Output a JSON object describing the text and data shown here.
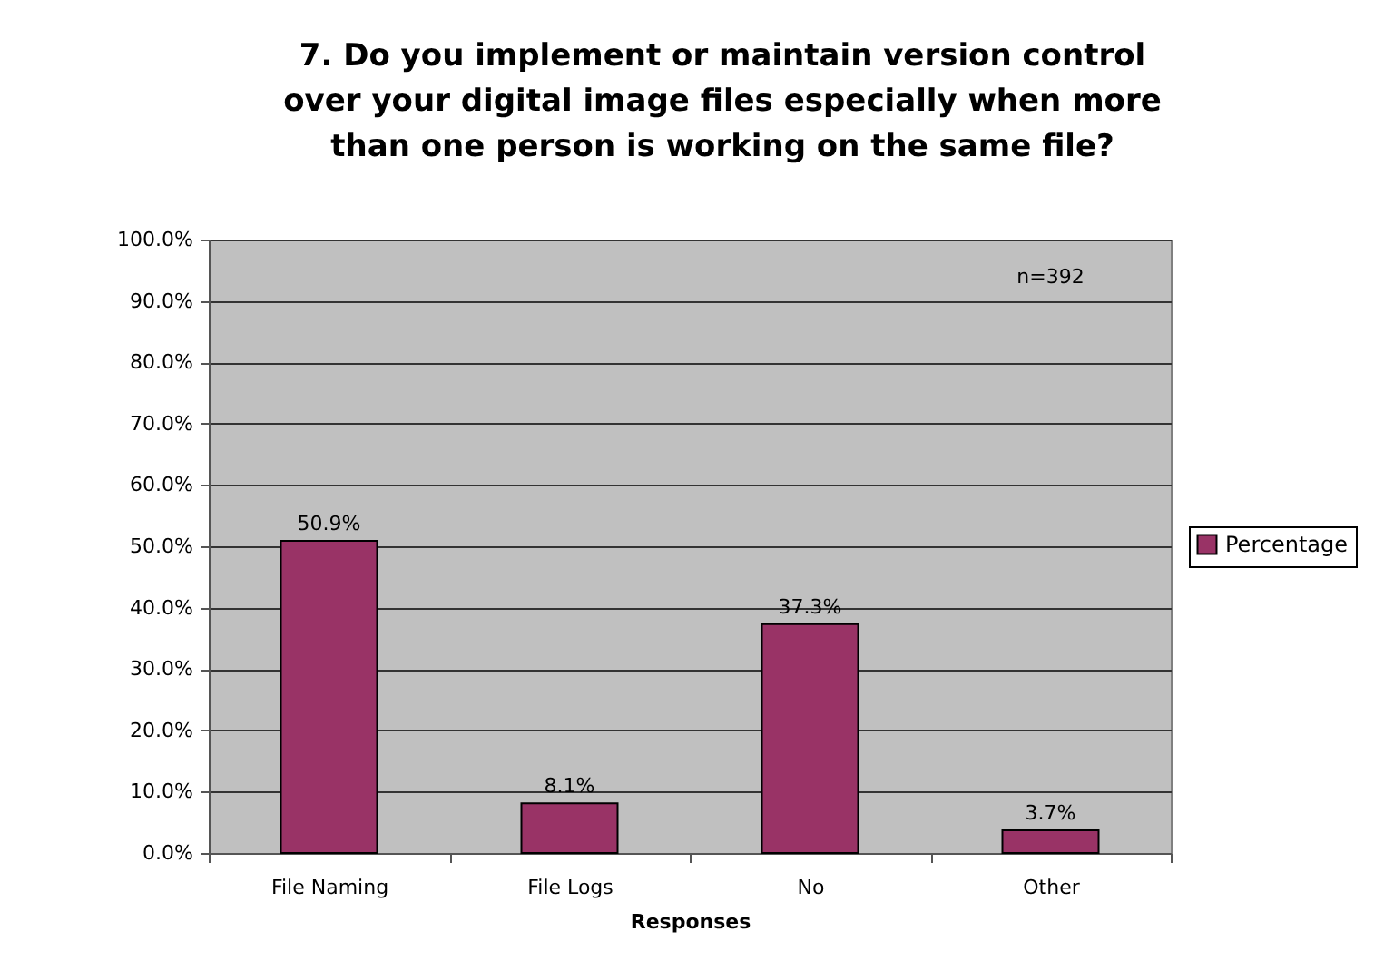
{
  "chart_data": {
    "type": "bar",
    "title": "7. Do you implement or maintain version control over your digital image files especially when more than one person is working on the same file?",
    "xlabel": "Responses",
    "categories": [
      "File Naming",
      "File Logs",
      "No",
      "Other"
    ],
    "series": [
      {
        "name": "Percentage",
        "color": "#993366",
        "values": [
          50.9,
          8.1,
          37.3,
          3.7
        ],
        "value_labels": [
          "50.9%",
          "8.1%",
          "37.3%",
          "3.7%"
        ]
      }
    ],
    "ylim": [
      0,
      100
    ],
    "yticks": [
      {
        "value": 0,
        "label": "0.0%"
      },
      {
        "value": 10,
        "label": "10.0%"
      },
      {
        "value": 20,
        "label": "20.0%"
      },
      {
        "value": 30,
        "label": "30.0%"
      },
      {
        "value": 40,
        "label": "40.0%"
      },
      {
        "value": 50,
        "label": "50.0%"
      },
      {
        "value": 60,
        "label": "60.0%"
      },
      {
        "value": 70,
        "label": "70.0%"
      },
      {
        "value": 80,
        "label": "80.0%"
      },
      {
        "value": 90,
        "label": "90.0%"
      },
      {
        "value": 100,
        "label": "100.0%"
      }
    ],
    "grid": "y",
    "legend": "right",
    "annotations": [
      "n=392"
    ]
  }
}
